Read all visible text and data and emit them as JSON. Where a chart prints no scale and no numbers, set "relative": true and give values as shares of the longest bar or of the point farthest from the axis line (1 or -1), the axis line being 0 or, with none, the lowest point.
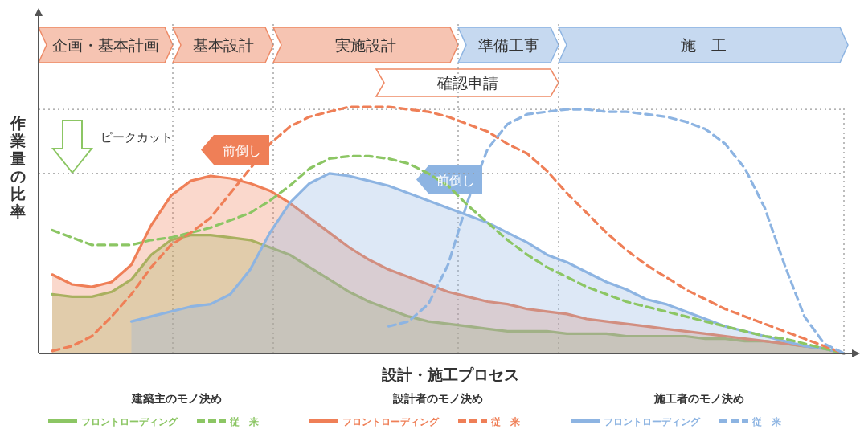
{
  "chart_data": {
    "type": "line",
    "relative": true,
    "xlabel": "設計・施工プロセス",
    "ylabel": "作業量の比率",
    "legend": "bottom",
    "categories": [
      null,
      null,
      null,
      null,
      null,
      null,
      null,
      null,
      null,
      null,
      null,
      null,
      null,
      null,
      null,
      null,
      null,
      null,
      null,
      null,
      null,
      null,
      null,
      null,
      null,
      null,
      null,
      null,
      null,
      null,
      null,
      null,
      null,
      null,
      null,
      null,
      null,
      null,
      null,
      null,
      null
    ],
    "series": [
      {
        "name": "フロントローディング",
        "type": "area",
        "line_style": "solid",
        "color": "#8cc664",
        "values": [
          0.24,
          0.23,
          0.23,
          0.25,
          0.3,
          0.4,
          0.46,
          0.48,
          0.48,
          0.47,
          0.46,
          0.43,
          0.4,
          0.35,
          0.3,
          0.25,
          0.21,
          0.18,
          0.15,
          0.13,
          0.12,
          0.11,
          0.1,
          0.09,
          0.09,
          0.09,
          0.08,
          0.08,
          0.08,
          0.07,
          0.07,
          0.07,
          0.07,
          0.06,
          0.06,
          0.05,
          0.05,
          0.04,
          0.03,
          0.02,
          0.0
        ]
      },
      {
        "name": "従　来",
        "line_style": "dashed",
        "color": "#8cc664",
        "values": [
          0.5,
          0.47,
          0.44,
          0.44,
          0.44,
          0.46,
          0.47,
          0.49,
          0.51,
          0.54,
          0.57,
          0.62,
          0.68,
          0.75,
          0.79,
          0.8,
          0.8,
          0.79,
          0.77,
          0.73,
          0.68,
          0.6,
          0.53,
          0.46,
          0.4,
          0.35,
          0.31,
          0.27,
          0.24,
          0.21,
          0.19,
          0.17,
          0.15,
          0.13,
          0.11,
          0.09,
          0.07,
          0.06,
          0.04,
          0.02,
          0.0
        ]
      },
      {
        "name": "フロントローディング",
        "type": "area",
        "line_style": "solid",
        "color": "#ef7f57",
        "values": [
          0.32,
          0.28,
          0.27,
          0.29,
          0.36,
          0.52,
          0.64,
          0.7,
          0.72,
          0.71,
          0.69,
          0.66,
          0.61,
          0.55,
          0.49,
          0.43,
          0.38,
          0.34,
          0.31,
          0.28,
          0.25,
          0.23,
          0.21,
          0.2,
          0.18,
          0.17,
          0.16,
          0.14,
          0.13,
          0.12,
          0.11,
          0.1,
          0.09,
          0.08,
          0.07,
          0.06,
          0.05,
          0.04,
          0.03,
          0.02,
          0.0
        ]
      },
      {
        "name": "従　来",
        "line_style": "dashed",
        "color": "#ef7f57",
        "values": [
          0.01,
          0.03,
          0.07,
          0.15,
          0.24,
          0.35,
          0.44,
          0.49,
          0.55,
          0.65,
          0.75,
          0.85,
          0.92,
          0.96,
          0.98,
          1.0,
          1.0,
          1.0,
          0.99,
          0.98,
          0.96,
          0.93,
          0.9,
          0.85,
          0.81,
          0.74,
          0.65,
          0.57,
          0.49,
          0.42,
          0.36,
          0.31,
          0.26,
          0.22,
          0.18,
          0.15,
          0.12,
          0.09,
          0.06,
          0.03,
          0.0
        ]
      },
      {
        "name": "フロントローディング",
        "type": "area",
        "line_style": "solid",
        "color": "#8db4e2",
        "values": [
          null,
          null,
          null,
          null,
          0.13,
          0.15,
          0.17,
          0.19,
          0.2,
          0.24,
          0.34,
          0.49,
          0.61,
          0.69,
          0.73,
          0.72,
          0.7,
          0.68,
          0.65,
          0.62,
          0.59,
          0.56,
          0.53,
          0.49,
          0.45,
          0.4,
          0.37,
          0.33,
          0.29,
          0.26,
          0.22,
          0.2,
          0.17,
          0.14,
          0.11,
          0.09,
          0.07,
          0.05,
          0.03,
          0.02,
          0.0
        ]
      },
      {
        "name": "従　来",
        "line_style": "dashed",
        "color": "#8db4e2",
        "values": [
          null,
          null,
          null,
          null,
          null,
          null,
          null,
          null,
          null,
          null,
          null,
          null,
          null,
          null,
          null,
          null,
          null,
          0.11,
          0.13,
          0.2,
          0.36,
          0.62,
          0.83,
          0.93,
          0.97,
          0.98,
          0.99,
          0.99,
          0.98,
          0.98,
          0.97,
          0.96,
          0.94,
          0.91,
          0.85,
          0.75,
          0.59,
          0.36,
          0.15,
          0.04,
          0.0
        ]
      }
    ],
    "ref_lines": [
      {
        "axis": "y",
        "value": 0.99,
        "color": "#999999",
        "line_style": "dotted"
      },
      {
        "axis": "y",
        "value": 0.73,
        "color": "#999999",
        "line_style": "dotted"
      }
    ],
    "annotations": [
      "企画・基本計画",
      "基本設計",
      "実施設計",
      "準備工事",
      "施　工",
      "確認申請",
      "ピークカット",
      "前倒し",
      "前倒し",
      "建築主のモノ決め",
      "設計者のモノ決め",
      "施工者のモノ決め"
    ]
  }
}
